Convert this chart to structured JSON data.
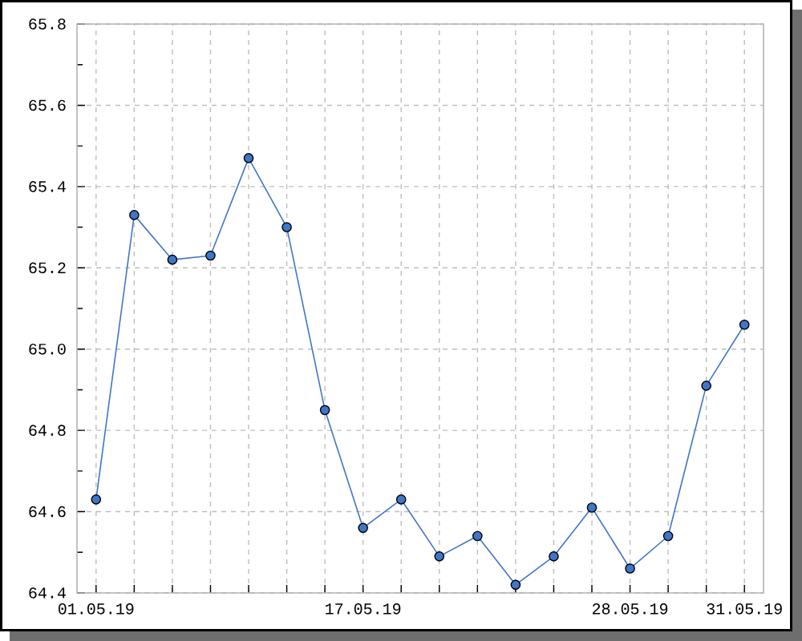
{
  "chart_data": {
    "type": "line",
    "categories": [
      "01.05.19",
      null,
      null,
      null,
      null,
      null,
      null,
      "17.05.19",
      null,
      null,
      null,
      null,
      null,
      null,
      "28.05.19",
      null,
      null,
      "31.05.19"
    ],
    "values": [
      64.63,
      65.33,
      65.22,
      65.23,
      65.47,
      65.3,
      64.85,
      64.56,
      64.63,
      64.49,
      64.54,
      64.42,
      64.49,
      64.61,
      64.46,
      64.54,
      64.91,
      65.06
    ],
    "color": "#3f76c8",
    "ylim": [
      64.4,
      65.8
    ],
    "yticks": [
      64.4,
      {
        "value": 64.5,
        "label": null
      },
      64.6,
      {
        "value": 64.7,
        "label": null
      },
      64.8,
      {
        "value": 64.9,
        "label": null
      },
      {
        "value": 65.0,
        "label": "65.0"
      },
      {
        "value": 65.1,
        "label": null
      },
      65.2,
      {
        "value": 65.3,
        "label": null
      },
      65.4,
      {
        "value": 65.5,
        "label": null
      },
      65.6,
      {
        "value": 65.7,
        "label": null
      },
      65.8
    ],
    "grid": true,
    "marker": "circle",
    "line_style": "solid"
  }
}
